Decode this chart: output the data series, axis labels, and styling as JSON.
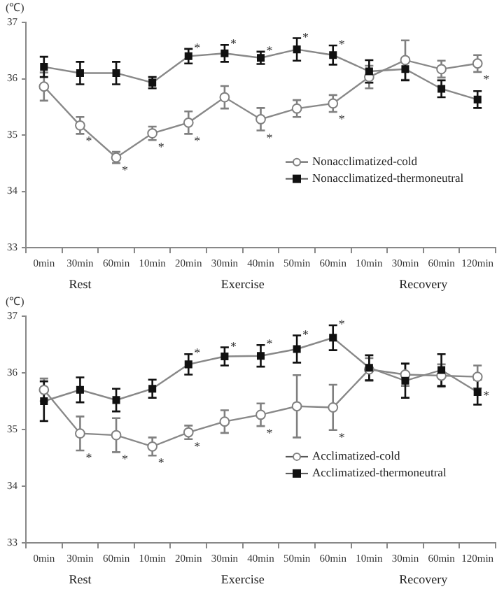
{
  "chart_data": [
    {
      "type": "line",
      "ylabel": "(℃)",
      "categories": [
        "0min",
        "30min",
        "60min",
        "10min",
        "20min",
        "30min",
        "40min",
        "50min",
        "60min",
        "10min",
        "30min",
        "60min",
        "120min"
      ],
      "series": [
        {
          "name": "Nonacclimatized-cold",
          "color": "#808080",
          "marker": "circle",
          "values": [
            35.86,
            35.17,
            34.6,
            35.03,
            35.22,
            35.67,
            35.28,
            35.47,
            35.56,
            36.03,
            36.33,
            36.17,
            36.27
          ],
          "errors": [
            0.25,
            0.15,
            0.1,
            0.12,
            0.2,
            0.2,
            0.2,
            0.15,
            0.15,
            0.2,
            0.35,
            0.15,
            0.15
          ],
          "value_labels": [
            null,
            "*",
            "*",
            "*",
            "*",
            null,
            "*",
            null,
            "*",
            null,
            null,
            null,
            "*"
          ]
        },
        {
          "name": "Nonacclimatized-thermoneutral",
          "color": "#111111",
          "marker": "square",
          "values": [
            36.21,
            36.1,
            36.1,
            35.93,
            36.4,
            36.45,
            36.37,
            36.52,
            36.42,
            36.13,
            36.17,
            35.82,
            35.63
          ],
          "errors": [
            0.18,
            0.2,
            0.2,
            0.1,
            0.13,
            0.15,
            0.11,
            0.2,
            0.17,
            0.2,
            0.2,
            0.15,
            0.15
          ],
          "value_labels": [
            null,
            null,
            null,
            null,
            "*",
            "*",
            "*",
            "*",
            "*",
            null,
            null,
            null,
            null
          ]
        }
      ],
      "ylim": [
        33,
        37
      ],
      "yticks": [
        33,
        34,
        35,
        36,
        37
      ],
      "grid": false,
      "legend": "center right",
      "line_style": "solid",
      "annotations": [
        "Rest",
        "Exercise",
        "Recovery"
      ]
    },
    {
      "type": "line",
      "ylabel": "(℃)",
      "categories": [
        "0min",
        "30min",
        "60min",
        "10min",
        "20min",
        "30min",
        "40min",
        "50min",
        "60min",
        "10min",
        "30min",
        "60min",
        "120min"
      ],
      "series": [
        {
          "name": "Acclimatized-cold",
          "color": "#808080",
          "marker": "circle",
          "values": [
            35.7,
            34.93,
            34.9,
            34.7,
            34.95,
            35.14,
            35.26,
            35.41,
            35.39,
            36.06,
            35.97,
            35.95,
            35.93
          ],
          "errors": [
            0.2,
            0.3,
            0.3,
            0.16,
            0.12,
            0.2,
            0.2,
            0.55,
            0.4,
            0.2,
            0.2,
            0.2,
            0.2
          ],
          "value_labels": [
            null,
            "*",
            "*",
            "*",
            "*",
            null,
            "*",
            null,
            "*",
            null,
            null,
            null,
            "*"
          ]
        },
        {
          "name": "Acclimatized-thermoneutral",
          "color": "#111111",
          "marker": "square",
          "values": [
            35.5,
            35.7,
            35.52,
            35.72,
            36.15,
            36.29,
            36.3,
            36.42,
            36.62,
            36.09,
            35.86,
            36.05,
            35.66
          ],
          "errors": [
            0.35,
            0.22,
            0.2,
            0.16,
            0.18,
            0.16,
            0.19,
            0.24,
            0.22,
            0.22,
            0.3,
            0.28,
            0.22
          ],
          "value_labels": [
            null,
            null,
            null,
            null,
            "*",
            "*",
            "*",
            "*",
            "*",
            null,
            null,
            null,
            null
          ]
        }
      ],
      "ylim": [
        33,
        37
      ],
      "yticks": [
        33,
        34,
        35,
        36,
        37
      ],
      "grid": false,
      "legend": "center right",
      "line_style": "solid",
      "annotations": [
        "Rest",
        "Exercise",
        "Recovery"
      ]
    }
  ]
}
